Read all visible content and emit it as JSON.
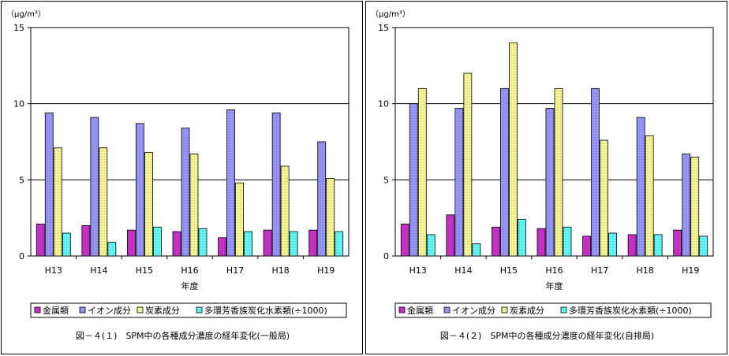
{
  "chart_data": [
    {
      "type": "bar",
      "title": "図－４(１)　SPM中の各種成分濃度の経年変化(一般局)",
      "unit_label": "（μg/m³）",
      "xlabel": "年度",
      "ylabel": "",
      "ylim": [
        0,
        15
      ],
      "yticks": [
        0,
        5,
        10,
        15
      ],
      "grid": true,
      "legend_position": "bottom",
      "categories": [
        "H13",
        "H14",
        "H15",
        "H16",
        "H17",
        "H18",
        "H19"
      ],
      "series": [
        {
          "name": "金属類",
          "color": "#cc33cc",
          "values": [
            2.1,
            2.0,
            1.7,
            1.6,
            1.2,
            1.7,
            1.7
          ]
        },
        {
          "name": "イオン成分",
          "color": "#9999ff",
          "values": [
            9.4,
            9.1,
            8.7,
            8.4,
            9.6,
            9.4,
            7.5
          ]
        },
        {
          "name": "炭素成分",
          "color": "#ffff99",
          "values": [
            7.1,
            7.1,
            6.8,
            6.7,
            4.8,
            5.9,
            5.1
          ]
        },
        {
          "name": "多環芳香族炭化水素類(÷1000)",
          "color": "#66ffff",
          "values": [
            1.5,
            0.9,
            1.9,
            1.8,
            1.6,
            1.6,
            1.6
          ]
        }
      ]
    },
    {
      "type": "bar",
      "title": "図－４(２)　SPM中の各種成分濃度の経年変化(自排局)",
      "unit_label": "（μg/m³）",
      "xlabel": "年度",
      "ylabel": "",
      "ylim": [
        0,
        15
      ],
      "yticks": [
        0,
        5,
        10,
        15
      ],
      "grid": true,
      "legend_position": "bottom",
      "categories": [
        "H13",
        "H14",
        "H15",
        "H16",
        "H17",
        "H18",
        "H19"
      ],
      "series": [
        {
          "name": "金属類",
          "color": "#cc33cc",
          "values": [
            2.1,
            2.7,
            1.9,
            1.8,
            1.3,
            1.4,
            1.7
          ]
        },
        {
          "name": "イオン成分",
          "color": "#9999ff",
          "values": [
            10.0,
            9.7,
            11.0,
            9.7,
            11.0,
            9.1,
            6.7
          ]
        },
        {
          "name": "炭素成分",
          "color": "#ffff99",
          "values": [
            11.0,
            12.0,
            14.0,
            11.0,
            7.6,
            7.9,
            6.5
          ]
        },
        {
          "name": "多環芳香族炭化水素類(÷1000)",
          "color": "#66ffff",
          "values": [
            1.4,
            0.8,
            2.4,
            1.9,
            1.5,
            1.4,
            1.3
          ]
        }
      ]
    }
  ]
}
